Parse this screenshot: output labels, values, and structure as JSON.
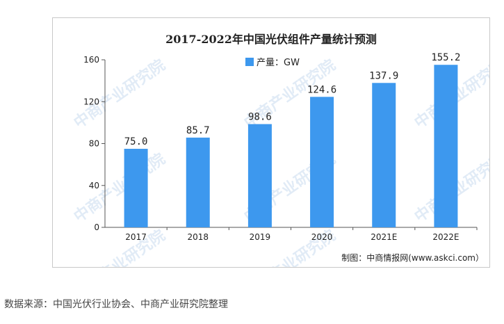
{
  "chart_data": {
    "type": "bar",
    "title": "2017-2022年中国光伏组件产量统计预测",
    "categories": [
      "2017",
      "2018",
      "2019",
      "2020",
      "2021E",
      "2022E"
    ],
    "series": [
      {
        "name": "产量：GW",
        "values": [
          75.0,
          85.7,
          98.6,
          124.6,
          137.9,
          155.2
        ]
      }
    ],
    "data_labels": [
      "75.0",
      "85.7",
      "98.6",
      "124.6",
      "137.9",
      "155.2"
    ],
    "yticks": [
      "0",
      "40",
      "80",
      "120",
      "160"
    ],
    "ylim": [
      0,
      160
    ],
    "xlabel": "",
    "ylabel": "",
    "legend_position": "top-center",
    "grid": false,
    "bar_color": "#3d98ee"
  },
  "credit": "制图：中商情报网(www.askci.com）",
  "watermark": "中商产业研究院",
  "source_note": "数据来源：中国光伏行业协会、中商产业研究院整理"
}
